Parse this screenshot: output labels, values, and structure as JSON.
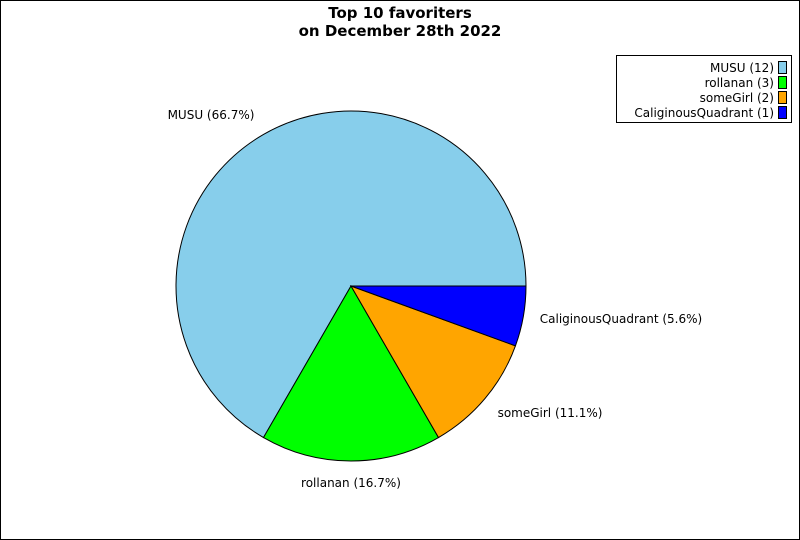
{
  "chart_data": {
    "type": "pie",
    "title_lines": [
      "Top 10 favoriters",
      "on December 28th 2022"
    ],
    "slices": [
      {
        "name": "MUSU",
        "value": 12,
        "percent_label": "MUSU (66.7%)",
        "legend_label": "MUSU (12)",
        "color": "#87ceeb"
      },
      {
        "name": "rollanan",
        "value": 3,
        "percent_label": "rollanan (16.7%)",
        "legend_label": "rollanan (3)",
        "color": "#00ff00"
      },
      {
        "name": "someGirl",
        "value": 2,
        "percent_label": "someGirl (11.1%)",
        "legend_label": "someGirl (2)",
        "color": "#ffa500"
      },
      {
        "name": "CaliginousQuadrant",
        "value": 1,
        "percent_label": "CaliginousQuadrant (5.6%)",
        "legend_label": "CaliginousQuadrant (1)",
        "color": "#0000ff"
      }
    ],
    "start_angle": "3 o'clock",
    "direction": "counterclockwise",
    "legend_position": "top-right"
  }
}
